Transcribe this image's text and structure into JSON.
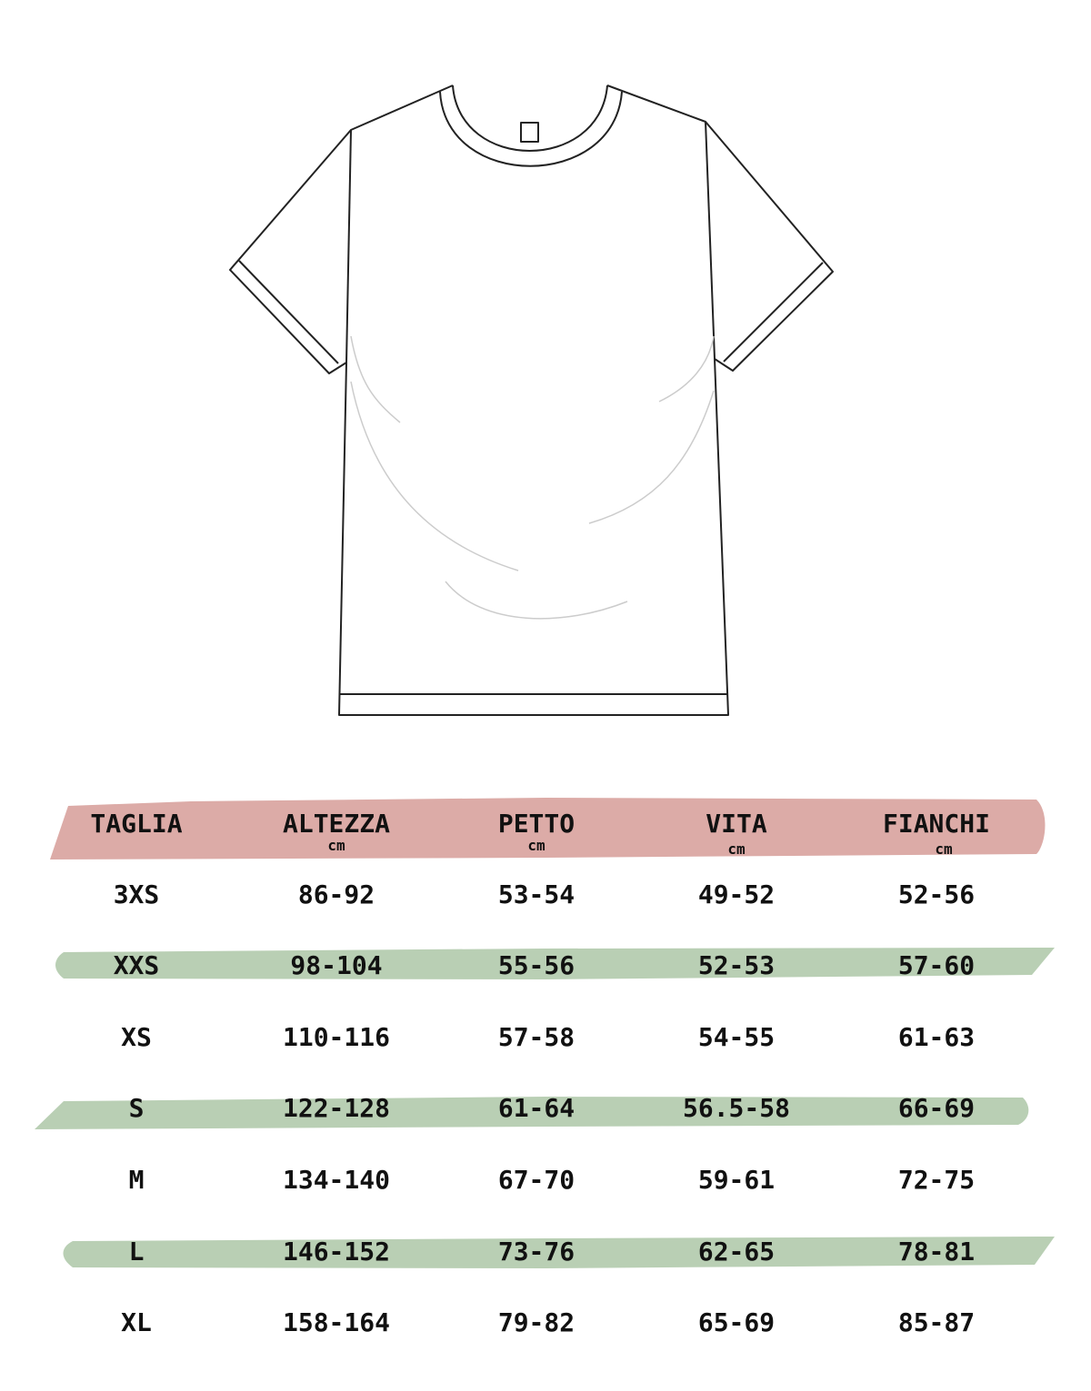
{
  "colors": {
    "header_band": "#dcaba7",
    "row_band": "#b9cfb4",
    "outline": "#222222"
  },
  "illustration": "t-shirt-outline",
  "table": {
    "headers": [
      {
        "label": "TAGLIA",
        "unit": ""
      },
      {
        "label": "ALTEZZA",
        "unit": "cm"
      },
      {
        "label": "PETTO",
        "unit": "cm"
      },
      {
        "label": "VITA",
        "unit": "cm"
      },
      {
        "label": "FIANCHI",
        "unit": "cm"
      }
    ],
    "rows": [
      [
        "3XS",
        "86-92",
        "53-54",
        "49-52",
        "52-56"
      ],
      [
        "XXS",
        "98-104",
        "55-56",
        "52-53",
        "57-60"
      ],
      [
        "XS",
        "110-116",
        "57-58",
        "54-55",
        "61-63"
      ],
      [
        "S",
        "122-128",
        "61-64",
        "56.5-58",
        "66-69"
      ],
      [
        "M",
        "134-140",
        "67-70",
        "59-61",
        "72-75"
      ],
      [
        "L",
        "146-152",
        "73-76",
        "62-65",
        "78-81"
      ],
      [
        "XL",
        "158-164",
        "79-82",
        "65-69",
        "85-87"
      ]
    ]
  }
}
